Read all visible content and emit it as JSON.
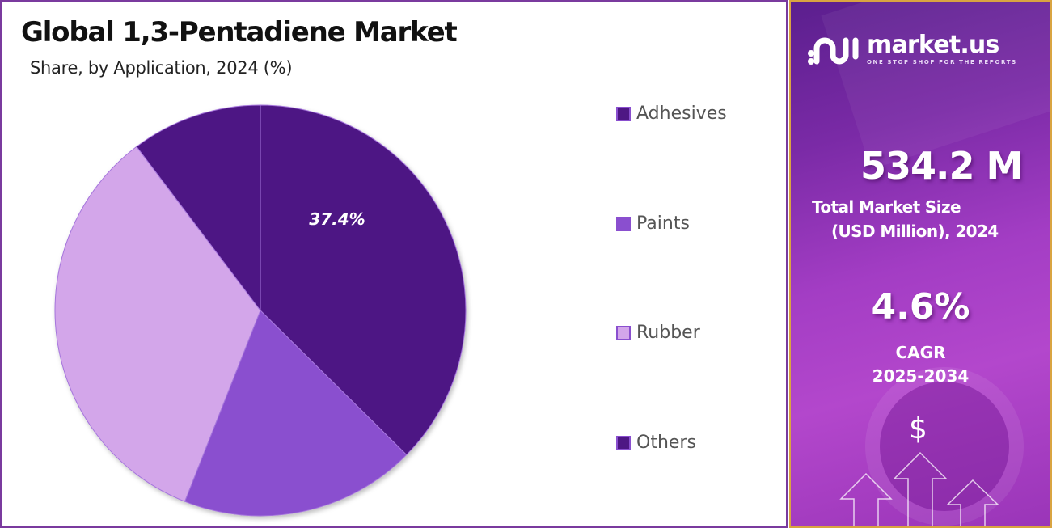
{
  "header": {
    "title": "Global 1,3-Pentadiene Market",
    "subtitle": "Share, by Application, 2024 (%)"
  },
  "legend": {
    "items": [
      {
        "label": "Adhesives",
        "color": "#4e1784"
      },
      {
        "label": "Paints",
        "color": "#8a4fcf"
      },
      {
        "label": "Rubber",
        "color": "#d3a6ea"
      },
      {
        "label": "Others",
        "color": "#4e1784"
      }
    ]
  },
  "pie": {
    "slice_label": "37.4%"
  },
  "sidebar": {
    "brand_name": "market.us",
    "brand_tagline": "ONE STOP SHOP FOR THE REPORTS",
    "market_size_value": "534.2 M",
    "market_size_label_line1": "Total Market Size",
    "market_size_label_line2": "(USD Million), 2024",
    "cagr_value": "4.6%",
    "cagr_label_line1": "CAGR",
    "cagr_label_line2": "2025-2034",
    "dollar_symbol": "$"
  },
  "colors": {
    "adhesives": "#4e1784",
    "paints": "#8a4fcf",
    "rubber": "#d3a6ea",
    "others": "#4e1784",
    "frame": "#7a3a9e",
    "sidebar_border": "#d9a441"
  },
  "chart_data": {
    "type": "pie",
    "title": "Global 1,3-Pentadiene Market",
    "subtitle": "Share, by Application, 2024 (%)",
    "categories": [
      "Adhesives",
      "Paints",
      "Rubber",
      "Others"
    ],
    "values": [
      37.4,
      18.6,
      33.7,
      10.3
    ],
    "labeled_values": {
      "Adhesives": "37.4%"
    },
    "colors": [
      "#4e1784",
      "#8a4fcf",
      "#d3a6ea",
      "#4e1784"
    ],
    "start_angle": "12 o'clock, clockwise",
    "legend_position": "right"
  }
}
